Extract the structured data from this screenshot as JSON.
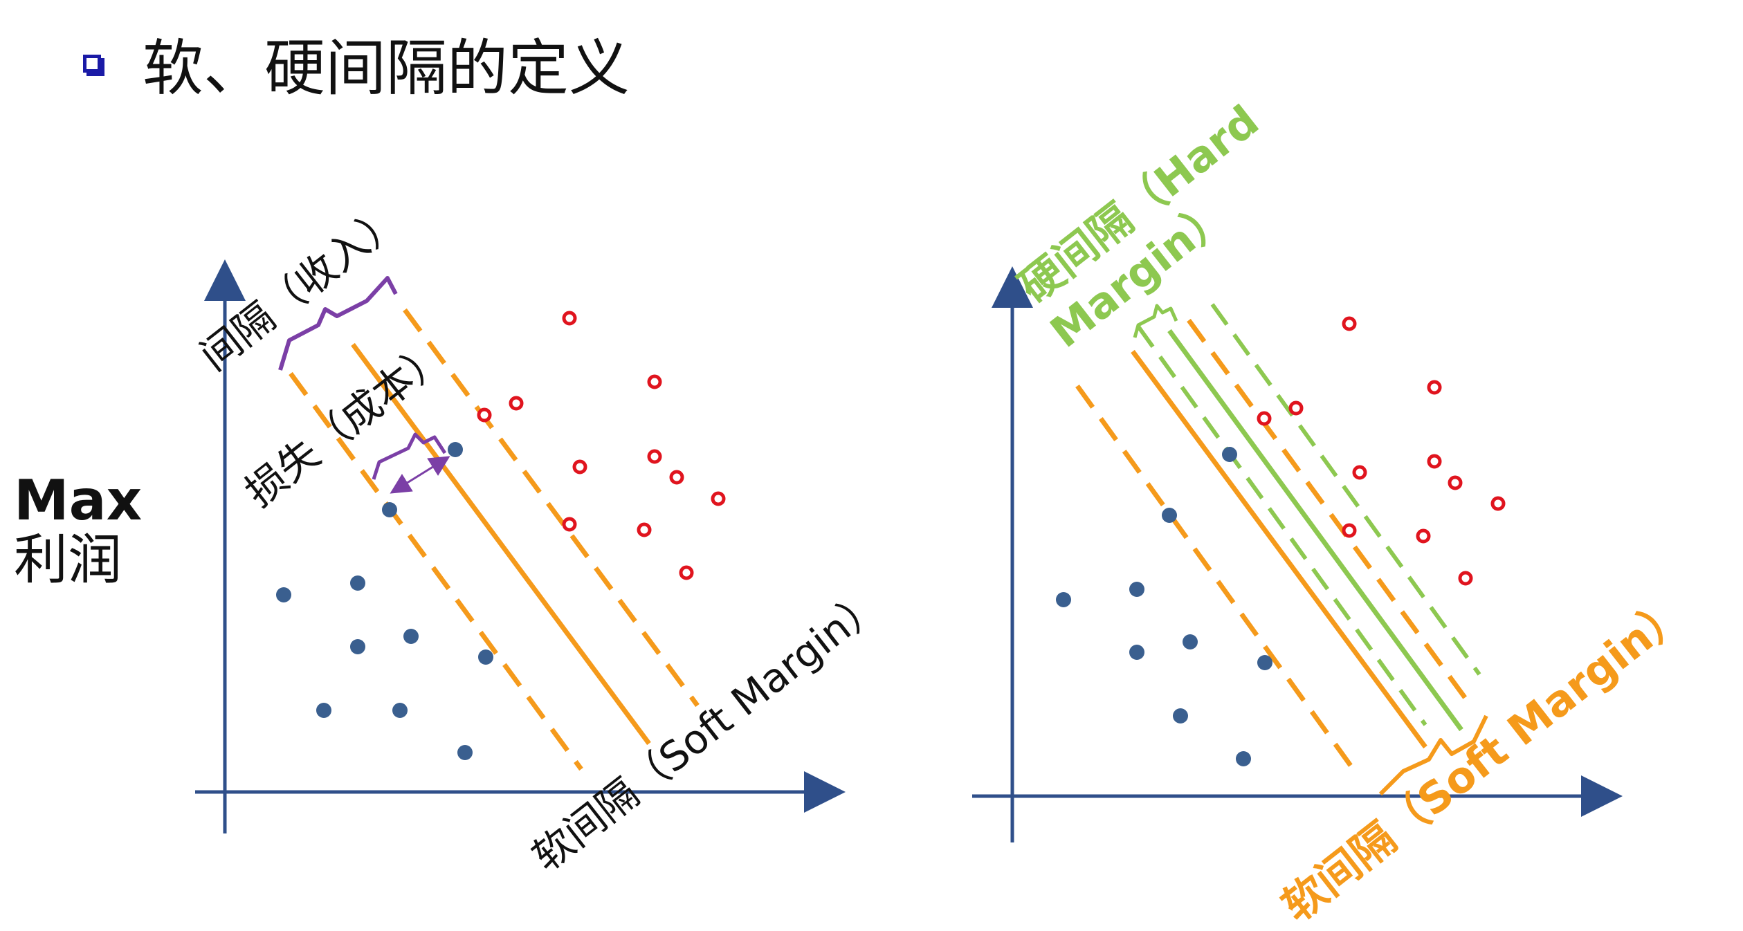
{
  "title": "软、硬间隔的定义",
  "side_label": {
    "line1": "Max",
    "line2": "利润"
  },
  "left_panel": {
    "margin_label": "间隔（收入）",
    "loss_label": "损失（成本）",
    "soft_margin_label": "软间隔（Soft Margin）"
  },
  "right_panel": {
    "hard_margin_label_line1": "硬间隔（Hard",
    "hard_margin_label_line2": "Margin）",
    "soft_margin_label": "软间隔（Soft Margin）"
  },
  "colors": {
    "axis": "#2f4f8a",
    "soft_line": "#f59a1b",
    "hard_line": "#8dc850",
    "bracket_purple": "#7b3fa6",
    "blue_point": "#3a5f8f",
    "red_point": "#e0141e",
    "bullet": "#1a1aa6"
  }
}
